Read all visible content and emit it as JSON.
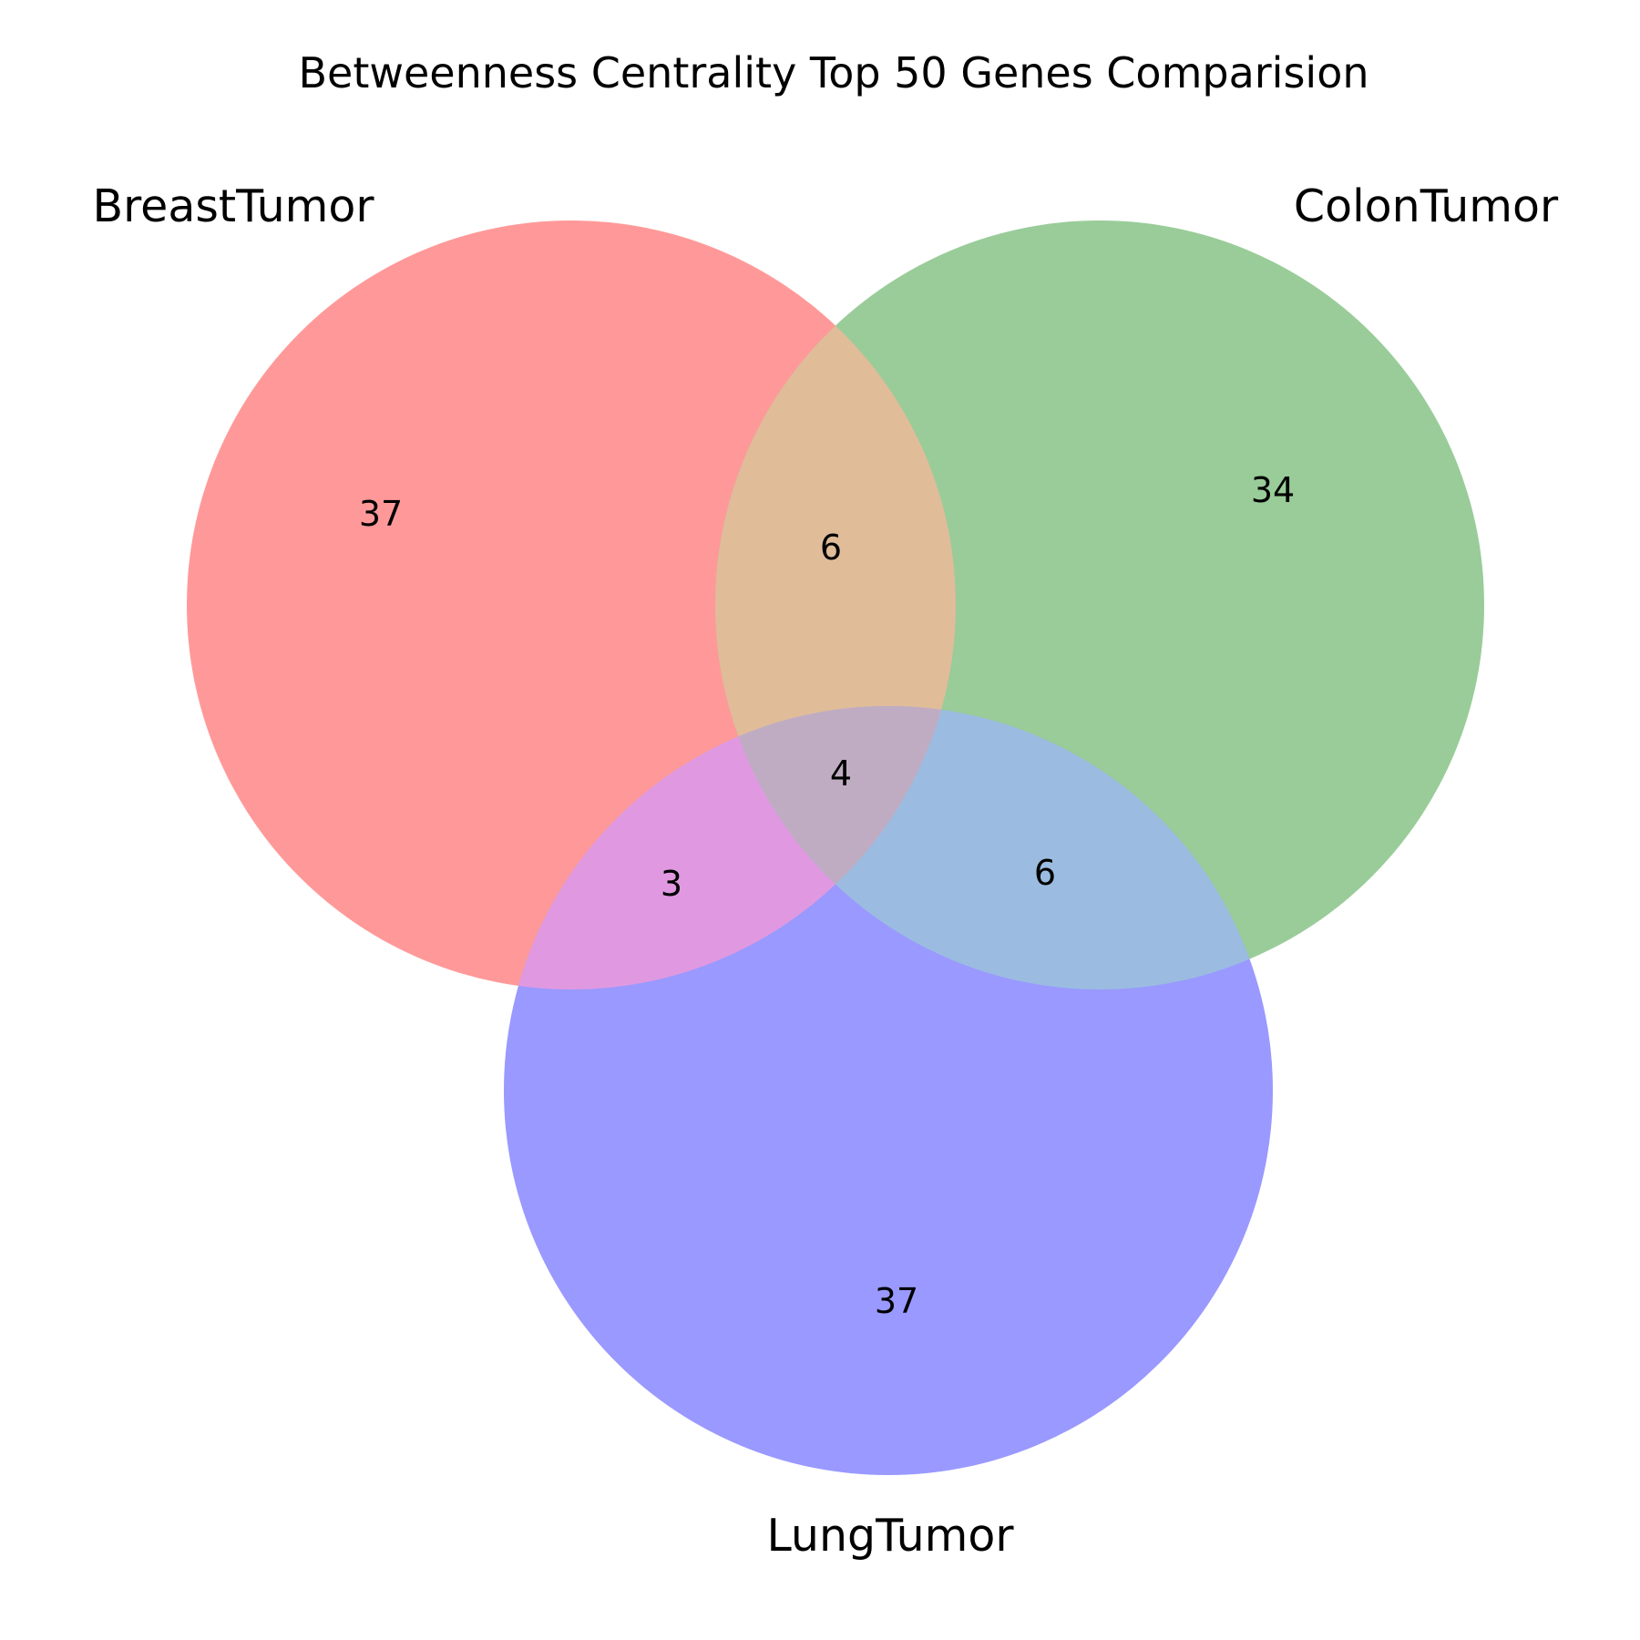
{
  "title": "Betweenness Centrality Top 50 Genes Comparision",
  "sets": [
    {
      "key": "breast",
      "label": "BreastTumor",
      "color": "#ff9999"
    },
    {
      "key": "colon",
      "label": "ColonTumor",
      "color": "#99cc99"
    },
    {
      "key": "lung",
      "label": "LungTumor",
      "color": "#9999ff"
    }
  ],
  "regions": {
    "breast_only": "37",
    "colon_only": "34",
    "lung_only": "37",
    "breast_colon": "6",
    "breast_lung": "3",
    "colon_lung": "6",
    "all_three": "4"
  },
  "region_colors": {
    "breast_colon": "#e0bc99",
    "breast_lung": "#e099e0",
    "colon_lung": "#9bbce0",
    "all_three": "#bfacc2"
  }
}
